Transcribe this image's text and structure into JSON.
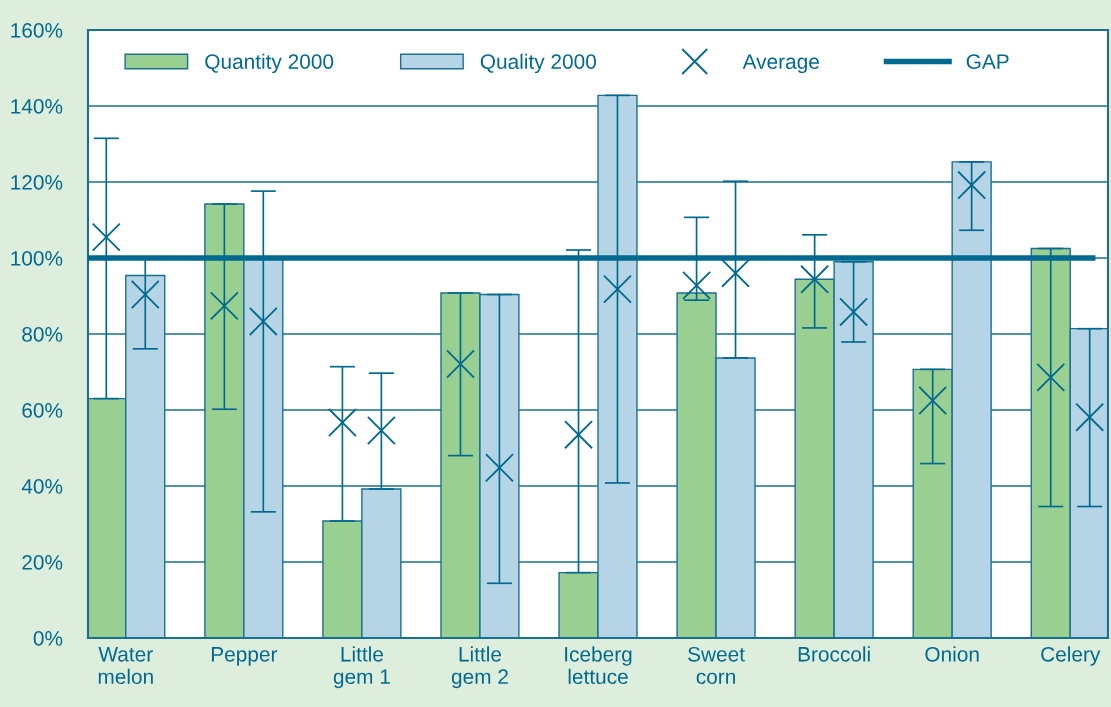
{
  "chart_data": {
    "type": "bar",
    "categories": [
      "Water\nmelon",
      "Pepper",
      "Little\ngem 1",
      "Little\ngem 2",
      "Iceberg\nlettuce",
      "Sweet\ncorn",
      "Broccoli",
      "Onion",
      "Celery"
    ],
    "series": [
      {
        "name": "Quantity 2000",
        "color": "#99cf91",
        "values": [
          63.0,
          114.2,
          30.8,
          90.8,
          17.2,
          90.8,
          94.4,
          70.7,
          102.5
        ]
      },
      {
        "name": "Quality 2000",
        "color": "#b5d4e5",
        "values": [
          95.4,
          100.0,
          39.2,
          90.4,
          142.8,
          73.7,
          99.0,
          125.3,
          81.4
        ]
      },
      {
        "name": "Average",
        "type": "scatter",
        "color": "#006990",
        "values": [
          105.5,
          87.4,
          56.7,
          72.1,
          53.5,
          92.8,
          94.4,
          62.5,
          68.6
        ],
        "errors": [
          [
            63.0,
            131.5
          ],
          [
            60.2,
            114.2
          ],
          [
            30.8,
            71.4
          ],
          [
            48.0,
            90.8
          ],
          [
            17.2,
            102.1
          ],
          [
            88.9,
            110.7
          ],
          [
            81.6,
            106.1
          ],
          [
            45.9,
            70.7
          ],
          [
            34.6,
            102.5
          ]
        ]
      },
      {
        "type": "scatter",
        "color": "#006990",
        "values": [
          90.4,
          83.3,
          54.6,
          44.8,
          91.8,
          96.0,
          85.8,
          119.2,
          58.1
        ],
        "errors": [
          [
            76.1,
            100.0
          ],
          [
            33.2,
            117.6
          ],
          [
            39.2,
            69.7
          ],
          [
            14.4,
            90.4
          ],
          [
            40.8,
            142.8
          ],
          [
            73.7,
            120.2
          ],
          [
            77.9,
            99.0
          ],
          [
            107.3,
            125.3
          ],
          [
            34.6,
            81.4
          ]
        ]
      }
    ],
    "ref_lines": [
      {
        "axis": "y",
        "value": 100,
        "label": "GAP",
        "color": "#006990"
      }
    ],
    "ylim": [
      0,
      160
    ],
    "yticks": [
      {
        "value": 0,
        "label": "0%"
      },
      {
        "value": 20,
        "label": "20%"
      },
      {
        "value": 40,
        "label": "40%"
      },
      {
        "value": 60,
        "label": "60%"
      },
      {
        "value": 80,
        "label": "80%"
      },
      {
        "value": 100,
        "label": "100%"
      },
      {
        "value": 120,
        "label": "120%"
      },
      {
        "value": 140,
        "label": "140%"
      },
      {
        "value": 160,
        "label": "160%"
      }
    ],
    "grid": "y",
    "legend": "top",
    "marker": "cross"
  }
}
